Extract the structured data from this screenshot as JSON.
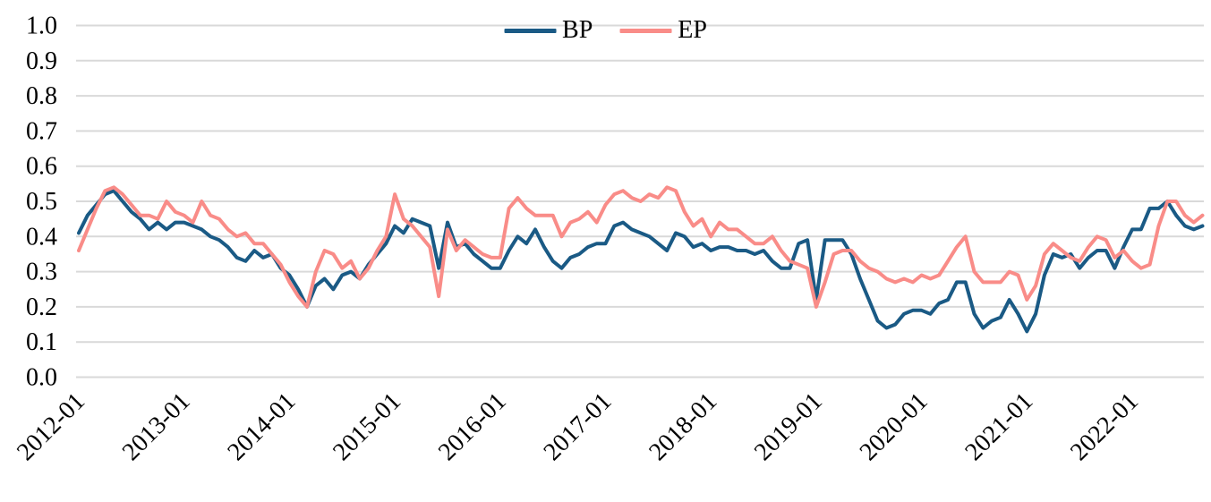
{
  "legend": {
    "items": [
      {
        "label": "BP",
        "color": "#1A5A85"
      },
      {
        "label": "EP",
        "color": "#F98C88"
      }
    ]
  },
  "chart_data": {
    "type": "line",
    "title": "",
    "xlabel": "",
    "ylabel": "",
    "x_start": "2012-01",
    "x_end": "2022-09",
    "x_frequency": "monthly",
    "x_tick_labels": [
      "2012-01",
      "2013-01",
      "2014-01",
      "2015-01",
      "2016-01",
      "2017-01",
      "2018-01",
      "2019-01",
      "2020-01",
      "2021-01",
      "2022-01"
    ],
    "x_tick_every": 12,
    "ylim": [
      0.0,
      1.0
    ],
    "y_tick_step": 0.1,
    "y_tick_labels": [
      "0.0",
      "0.1",
      "0.2",
      "0.3",
      "0.4",
      "0.5",
      "0.6",
      "0.7",
      "0.8",
      "0.9",
      "1.0"
    ],
    "grid": "horizontal",
    "gridline_color": "#D9D9D9",
    "legend_position": "top-center",
    "series": [
      {
        "name": "BP",
        "color": "#1A5A85",
        "values": [
          0.41,
          0.46,
          0.49,
          0.52,
          0.53,
          0.5,
          0.47,
          0.45,
          0.42,
          0.44,
          0.42,
          0.44,
          0.44,
          0.43,
          0.42,
          0.4,
          0.39,
          0.37,
          0.34,
          0.33,
          0.36,
          0.34,
          0.35,
          0.31,
          0.29,
          0.25,
          0.2,
          0.26,
          0.28,
          0.25,
          0.29,
          0.3,
          0.28,
          0.32,
          0.35,
          0.38,
          0.43,
          0.41,
          0.45,
          0.44,
          0.43,
          0.31,
          0.44,
          0.37,
          0.38,
          0.35,
          0.33,
          0.31,
          0.31,
          0.36,
          0.4,
          0.38,
          0.42,
          0.37,
          0.33,
          0.31,
          0.34,
          0.35,
          0.37,
          0.38,
          0.38,
          0.43,
          0.44,
          0.42,
          0.41,
          0.4,
          0.38,
          0.36,
          0.41,
          0.4,
          0.37,
          0.38,
          0.36,
          0.37,
          0.37,
          0.36,
          0.36,
          0.35,
          0.36,
          0.33,
          0.31,
          0.31,
          0.38,
          0.39,
          0.22,
          0.39,
          0.39,
          0.39,
          0.35,
          0.28,
          0.22,
          0.16,
          0.14,
          0.15,
          0.18,
          0.19,
          0.19,
          0.18,
          0.21,
          0.22,
          0.27,
          0.27,
          0.18,
          0.14,
          0.16,
          0.17,
          0.22,
          0.18,
          0.13,
          0.18,
          0.29,
          0.35,
          0.34,
          0.35,
          0.31,
          0.34,
          0.36,
          0.36,
          0.31,
          0.37,
          0.42,
          0.42,
          0.48,
          0.48,
          0.5,
          0.46,
          0.43,
          0.42,
          0.43
        ]
      },
      {
        "name": "EP",
        "color": "#F98C88",
        "values": [
          0.36,
          0.42,
          0.48,
          0.53,
          0.54,
          0.52,
          0.49,
          0.46,
          0.46,
          0.45,
          0.5,
          0.47,
          0.46,
          0.44,
          0.5,
          0.46,
          0.45,
          0.42,
          0.4,
          0.41,
          0.38,
          0.38,
          0.35,
          0.32,
          0.27,
          0.23,
          0.2,
          0.3,
          0.36,
          0.35,
          0.31,
          0.33,
          0.28,
          0.31,
          0.36,
          0.4,
          0.52,
          0.45,
          0.43,
          0.4,
          0.37,
          0.23,
          0.42,
          0.36,
          0.39,
          0.37,
          0.35,
          0.34,
          0.34,
          0.48,
          0.51,
          0.48,
          0.46,
          0.46,
          0.46,
          0.4,
          0.44,
          0.45,
          0.47,
          0.44,
          0.49,
          0.52,
          0.53,
          0.51,
          0.5,
          0.52,
          0.51,
          0.54,
          0.53,
          0.47,
          0.43,
          0.45,
          0.4,
          0.44,
          0.42,
          0.42,
          0.4,
          0.38,
          0.38,
          0.4,
          0.36,
          0.33,
          0.32,
          0.31,
          0.2,
          0.27,
          0.35,
          0.36,
          0.36,
          0.33,
          0.31,
          0.3,
          0.28,
          0.27,
          0.28,
          0.27,
          0.29,
          0.28,
          0.29,
          0.33,
          0.37,
          0.4,
          0.3,
          0.27,
          0.27,
          0.27,
          0.3,
          0.29,
          0.22,
          0.26,
          0.35,
          0.38,
          0.36,
          0.34,
          0.33,
          0.37,
          0.4,
          0.39,
          0.34,
          0.36,
          0.33,
          0.31,
          0.32,
          0.43,
          0.5,
          0.5,
          0.46,
          0.44,
          0.46
        ]
      }
    ]
  }
}
